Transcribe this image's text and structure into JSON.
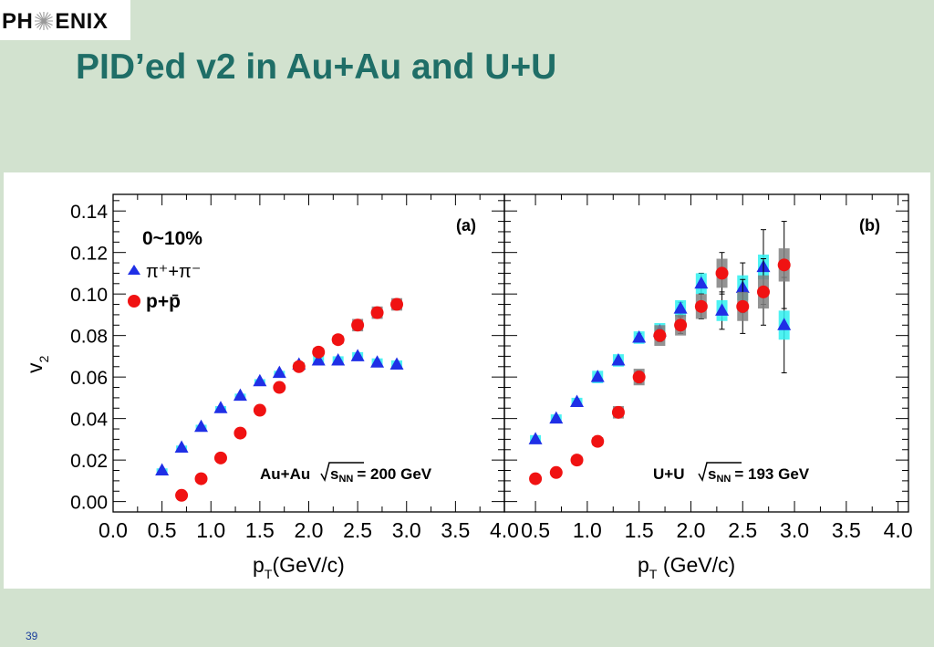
{
  "slide": {
    "logo_left": "PH",
    "logo_right": "ENIX",
    "title": "PID’ed v2 in Au+Au and U+U",
    "page_number": "39"
  },
  "colors": {
    "background": "#d2e2cf",
    "title": "#1f6e67",
    "pion": "#1f2fe6",
    "proton": "#f01212",
    "pion_syst": "#2ff0f0",
    "proton_syst": "#808080"
  },
  "chart_data": [
    {
      "type": "scatter",
      "panel_label": "(a)",
      "ylabel": "v",
      "ylabel_sub": "2",
      "xlabel": "p",
      "xlabel_sub": "T",
      "xlabel_unit": "(GeV/c)",
      "xlim": [
        0.0,
        4.0
      ],
      "ylim": [
        -0.005,
        0.148
      ],
      "xticks": [
        "0.0",
        "0.5",
        "1.0",
        "1.5",
        "2.0",
        "2.5",
        "3.0",
        "3.5",
        "4.0"
      ],
      "yticks": [
        "0.00",
        "0.02",
        "0.04",
        "0.06",
        "0.08",
        "0.10",
        "0.12",
        "0.14"
      ],
      "legend": {
        "centrality": "0~10%",
        "pion_label": "π⁺+π⁻",
        "proton_label": "p+p̄"
      },
      "system_label": "Au+Au",
      "energy_label": "s",
      "energy_sub": "NN",
      "energy_value": "= 200 GeV",
      "series": [
        {
          "name": "π⁺+π⁻",
          "marker": "triangle",
          "x": [
            0.5,
            0.7,
            0.9,
            1.1,
            1.3,
            1.5,
            1.7,
            1.9,
            2.1,
            2.3,
            2.5,
            2.7,
            2.9
          ],
          "y": [
            0.015,
            0.026,
            0.036,
            0.045,
            0.051,
            0.058,
            0.062,
            0.066,
            0.068,
            0.068,
            0.07,
            0.067,
            0.066
          ],
          "syst": [
            0.001,
            0.001,
            0.001,
            0.001,
            0.001,
            0.001,
            0.001,
            0.001,
            0.002,
            0.002,
            0.002,
            0.002,
            0.002
          ],
          "err": [
            0,
            0,
            0,
            0,
            0,
            0,
            0,
            0,
            0,
            0,
            0,
            0,
            0
          ]
        },
        {
          "name": "p+p̄",
          "marker": "circle",
          "x": [
            0.7,
            0.9,
            1.1,
            1.3,
            1.5,
            1.7,
            1.9,
            2.1,
            2.3,
            2.5,
            2.7,
            2.9
          ],
          "y": [
            0.003,
            0.011,
            0.021,
            0.033,
            0.044,
            0.055,
            0.065,
            0.072,
            0.078,
            0.085,
            0.091,
            0.095
          ],
          "syst": [
            0.001,
            0.001,
            0.001,
            0.001,
            0.001,
            0.001,
            0.002,
            0.002,
            0.002,
            0.003,
            0.003,
            0.003
          ],
          "err": [
            0,
            0,
            0,
            0,
            0,
            0,
            0,
            0,
            0,
            0,
            0,
            0
          ]
        }
      ]
    },
    {
      "type": "scatter",
      "panel_label": "(b)",
      "xlabel": "p",
      "xlabel_sub": "T",
      "xlabel_unit": " (GeV/c)",
      "xlim": [
        0.2,
        4.1
      ],
      "ylim": [
        -0.005,
        0.148
      ],
      "xticks": [
        "0.5",
        "1.0",
        "1.5",
        "2.0",
        "2.5",
        "3.0",
        "3.5",
        "4.0"
      ],
      "system_label": "U+U",
      "energy_label": "s",
      "energy_sub": "NN",
      "energy_value": "= 193 GeV",
      "series": [
        {
          "name": "π⁺+π⁻",
          "marker": "triangle",
          "x": [
            0.5,
            0.7,
            0.9,
            1.1,
            1.3,
            1.5,
            1.7,
            1.9,
            2.1,
            2.3,
            2.5,
            2.7,
            2.9
          ],
          "y": [
            0.03,
            0.04,
            0.048,
            0.06,
            0.068,
            0.079,
            0.082,
            0.093,
            0.105,
            0.092,
            0.103,
            0.113,
            0.085
          ],
          "syst": [
            0.002,
            0.002,
            0.002,
            0.003,
            0.003,
            0.003,
            0.004,
            0.004,
            0.005,
            0.005,
            0.006,
            0.006,
            0.007
          ],
          "err": [
            0.001,
            0.001,
            0.001,
            0.001,
            0.001,
            0.002,
            0.002,
            0.003,
            0.005,
            0.009,
            0.012,
            0.018,
            0.023
          ]
        },
        {
          "name": "p+p̄",
          "marker": "circle",
          "x": [
            0.5,
            0.7,
            0.9,
            1.1,
            1.3,
            1.5,
            1.7,
            1.9,
            2.1,
            2.3,
            2.5,
            2.7,
            2.9
          ],
          "y": [
            0.011,
            0.014,
            0.02,
            0.029,
            0.043,
            0.06,
            0.08,
            0.085,
            0.094,
            0.11,
            0.094,
            0.101,
            0.114
          ],
          "syst": [
            0.001,
            0.001,
            0.002,
            0.002,
            0.003,
            0.004,
            0.005,
            0.005,
            0.006,
            0.007,
            0.007,
            0.008,
            0.008
          ],
          "err": [
            0.001,
            0.001,
            0.001,
            0.001,
            0.002,
            0.003,
            0.003,
            0.004,
            0.006,
            0.01,
            0.013,
            0.016,
            0.021
          ]
        }
      ]
    }
  ]
}
